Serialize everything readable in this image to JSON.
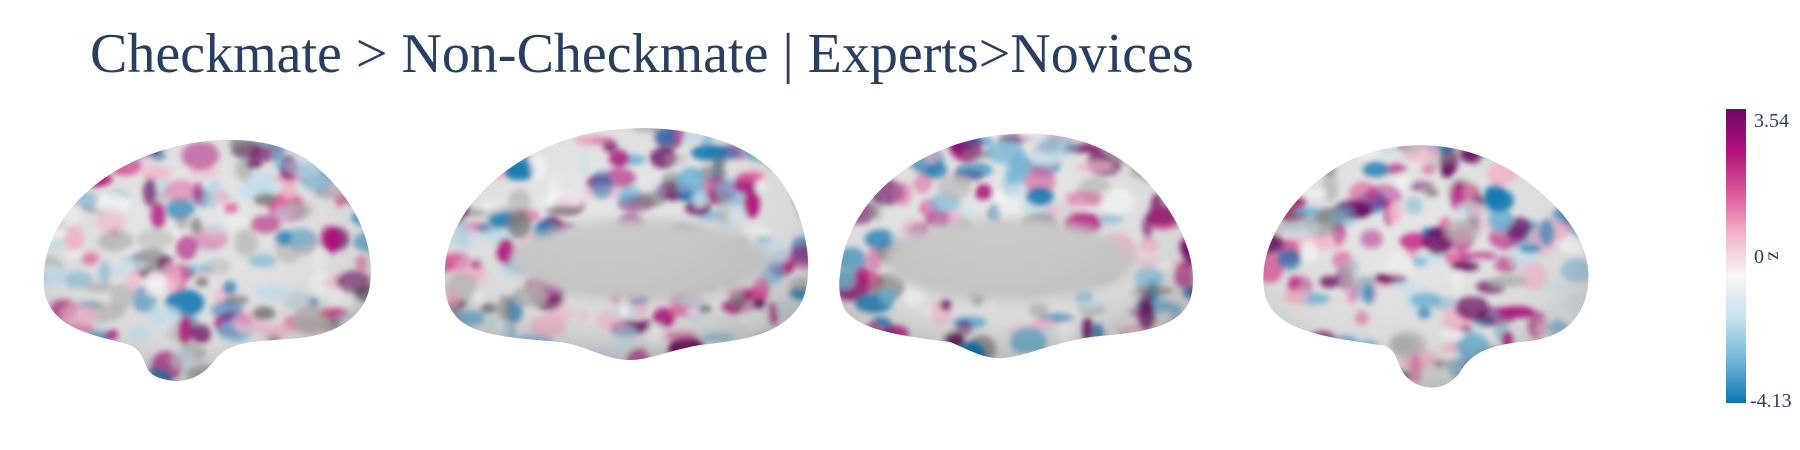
{
  "title": "Checkmate > Non-Checkmate | Experts>Novices",
  "colorbar": {
    "title": "z",
    "max_label": "3.54",
    "mid_label": "0",
    "min_label": "-4.13",
    "min": -4.13,
    "max": 3.54,
    "colors": [
      "#0a78b4",
      "#6fb3d5",
      "#c7e1ee",
      "#f7f7f7",
      "#f4b6cc",
      "#dd5a9a",
      "#b1107c",
      "#6b0a62"
    ]
  },
  "views": [
    {
      "name": "left-lateral"
    },
    {
      "name": "left-medial"
    },
    {
      "name": "right-medial"
    },
    {
      "name": "right-lateral"
    }
  ]
}
